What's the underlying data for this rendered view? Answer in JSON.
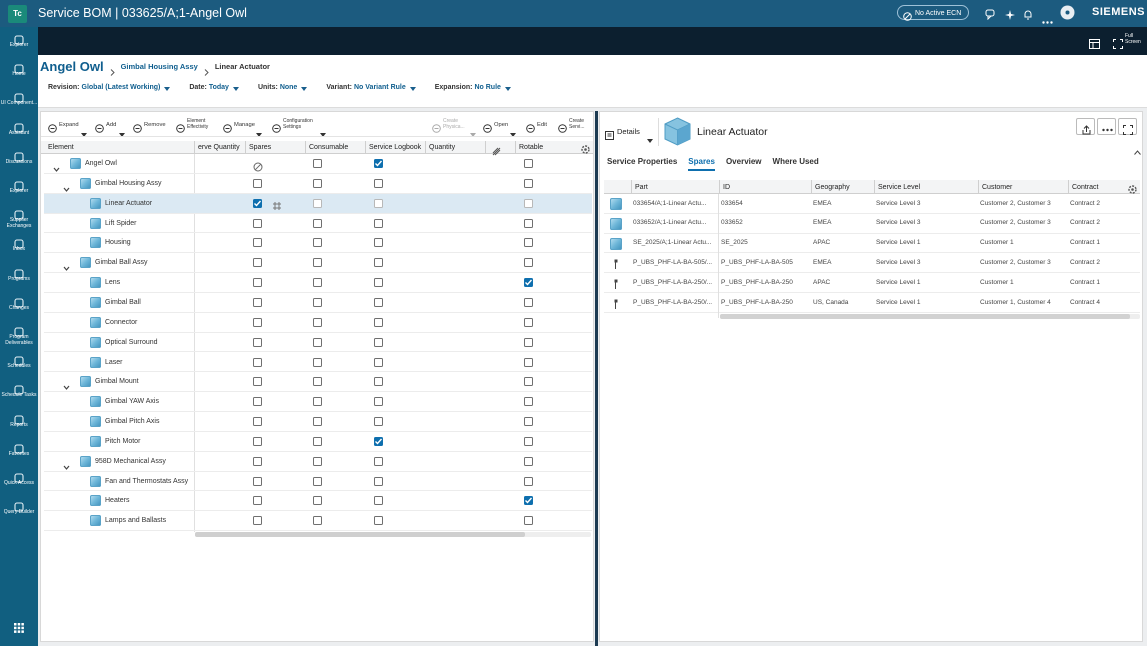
{
  "header": {
    "badge": "Tc",
    "title": "Service BOM | 033625/A;1-Angel Owl",
    "ecn": "No Active ECN",
    "brand": "SIEMENS",
    "full_screen": "Full Screen"
  },
  "sidebar": [
    "Explorer",
    "Home",
    "UI Component...",
    "Assistant",
    "Discussions",
    "Explorer",
    "Supplier Exchanges",
    "Inbox",
    "Programs",
    "Changes",
    "Program Deliverables",
    "Schedules",
    "Schedule Tasks",
    "Reports",
    "Favorites",
    "Quick Access",
    "Query Builder"
  ],
  "breadcrumb": [
    "Angel Owl",
    "Gimbal Housing Assy",
    "Linear Actuator"
  ],
  "filters": [
    {
      "label": "Revision:",
      "value": "Global (Latest Working)"
    },
    {
      "label": "Date:",
      "value": "Today"
    },
    {
      "label": "Units:",
      "value": "None"
    },
    {
      "label": "Variant:",
      "value": "No Variant Rule"
    },
    {
      "label": "Expansion:",
      "value": "No Rule"
    }
  ],
  "toolbar": [
    {
      "label": "Expand",
      "menu": true
    },
    {
      "label": "Add",
      "menu": true
    },
    {
      "label": "Remove"
    },
    {
      "label": "Element Effectivity"
    },
    {
      "label": "Manage",
      "menu": true
    },
    {
      "label": "Configuration Settings",
      "menu": true
    },
    {
      "label": "Create Physica...",
      "menu": true,
      "disabled": true
    },
    {
      "label": "Open",
      "menu": true
    },
    {
      "label": "Edit"
    },
    {
      "label": "Create Servi..."
    }
  ],
  "tree": {
    "columns": [
      "Element",
      "erve Quantity",
      "Spares",
      "Consumable",
      "Service Logbook",
      "Quantity",
      "",
      "Rotable"
    ],
    "rows": [
      {
        "name": "Angel Owl",
        "level": 0,
        "expanded": true,
        "spares": "na",
        "consumable": false,
        "logbook": true,
        "rotable": false
      },
      {
        "name": "Gimbal Housing Assy",
        "level": 1,
        "expanded": true,
        "spares": false,
        "consumable": false,
        "logbook": false,
        "rotable": false
      },
      {
        "name": "Linear Actuator",
        "level": 2,
        "selected": true,
        "spares": true,
        "consumable": false,
        "logbook": false,
        "rotable": false
      },
      {
        "name": "Lift Spider",
        "level": 2,
        "spares": false,
        "consumable": false,
        "logbook": false,
        "rotable": false
      },
      {
        "name": "Housing",
        "level": 2,
        "spares": false,
        "consumable": false,
        "logbook": false,
        "rotable": false
      },
      {
        "name": "Gimbal Ball Assy",
        "level": 1,
        "expanded": true,
        "spares": false,
        "consumable": false,
        "logbook": false,
        "rotable": false
      },
      {
        "name": "Lens",
        "level": 2,
        "spares": false,
        "consumable": false,
        "logbook": false,
        "rotable": true
      },
      {
        "name": "Gimbal Ball",
        "level": 2,
        "spares": false,
        "consumable": false,
        "logbook": false,
        "rotable": false
      },
      {
        "name": "Connector",
        "level": 2,
        "spares": false,
        "consumable": false,
        "logbook": false,
        "rotable": false
      },
      {
        "name": "Optical Surround",
        "level": 2,
        "spares": false,
        "consumable": false,
        "logbook": false,
        "rotable": false
      },
      {
        "name": "Laser",
        "level": 2,
        "spares": false,
        "consumable": false,
        "logbook": false,
        "rotable": false
      },
      {
        "name": "Gimbal Mount",
        "level": 1,
        "expanded": true,
        "spares": false,
        "consumable": false,
        "logbook": false,
        "rotable": false
      },
      {
        "name": "Gimbal YAW Axis",
        "level": 2,
        "spares": false,
        "consumable": false,
        "logbook": false,
        "rotable": false
      },
      {
        "name": "Gimbal Pitch Axis",
        "level": 2,
        "spares": false,
        "consumable": false,
        "logbook": false,
        "rotable": false
      },
      {
        "name": "Pitch Motor",
        "level": 2,
        "spares": false,
        "consumable": false,
        "logbook": true,
        "rotable": false
      },
      {
        "name": "958D Mechanical Assy",
        "level": 1,
        "expanded": true,
        "spares": false,
        "consumable": false,
        "logbook": false,
        "rotable": false
      },
      {
        "name": "Fan and Thermostats Assy",
        "level": 2,
        "spares": false,
        "consumable": false,
        "logbook": false,
        "rotable": false
      },
      {
        "name": "Heaters",
        "level": 2,
        "spares": false,
        "consumable": false,
        "logbook": false,
        "rotable": true
      },
      {
        "name": "Lamps and Ballasts",
        "level": 2,
        "spares": false,
        "consumable": false,
        "logbook": false,
        "rotable": false
      }
    ]
  },
  "details": {
    "menu": "Details",
    "title": "Linear Actuator",
    "tabs": [
      "Service Properties",
      "Spares",
      "Overview",
      "Where Used"
    ],
    "active_tab": 1,
    "columns": [
      "Part",
      "ID",
      "Geography",
      "Service Level",
      "Customer",
      "Contract"
    ],
    "rows": [
      {
        "icon": "cube",
        "cells": [
          "033654/A;1-Linear Actu...",
          "033654",
          "EMEA",
          "Service Level 3",
          "Customer 2,  Customer 3",
          "Contract 2"
        ]
      },
      {
        "icon": "cube",
        "cells": [
          "033652/A;1-Linear Actu...",
          "033652",
          "EMEA",
          "Service Level 3",
          "Customer 2,  Customer 3",
          "Contract 2"
        ]
      },
      {
        "icon": "cube",
        "cells": [
          "SE_2025/A;1-Linear Actu...",
          "SE_2025",
          "APAC",
          "Service Level 1",
          "Customer 1",
          "Contract 1"
        ]
      },
      {
        "icon": "pin",
        "cells": [
          "P_UBS_PHF-LA-BA-505/...",
          "P_UBS_PHF-LA-BA-505",
          "EMEA",
          "Service Level 3",
          "Customer 2,  Customer 3",
          "Contract 2"
        ]
      },
      {
        "icon": "pin",
        "cells": [
          "P_UBS_PHF-LA-BA-250/...",
          "P_UBS_PHF-LA-BA-250",
          "APAC",
          "Service Level 1",
          "Customer 1",
          "Contract 1"
        ]
      },
      {
        "icon": "pin",
        "cells": [
          "P_UBS_PHF-LA-BA-250/...",
          "P_UBS_PHF-LA-BA-250",
          "US,  Canada",
          "Service Level 1",
          "Customer 1,  Customer 4",
          "Contract 4"
        ]
      }
    ]
  }
}
